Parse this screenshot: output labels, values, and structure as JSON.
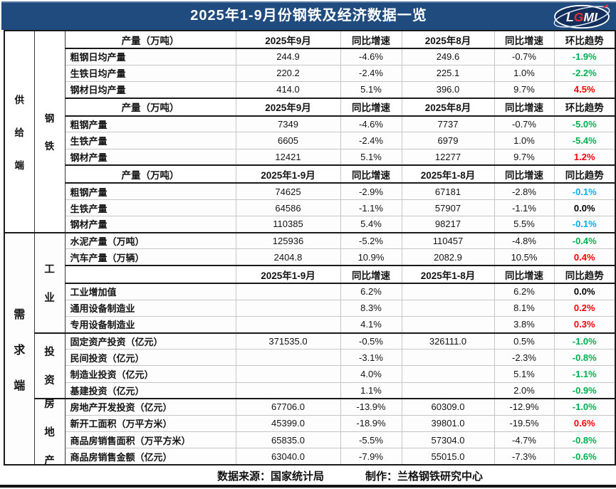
{
  "title": "2025年1-9月份钢铁及经济数据一览",
  "logo": {
    "l": "L",
    "g": "G",
    "mi": "MI"
  },
  "colors": {
    "titlebar": "#1F4B7E",
    "green": "#00B050",
    "red": "#FF0000",
    "blue": "#00B0F0",
    "black": "#000000"
  },
  "footer": {
    "source": "数据来源：国家统计局",
    "maker": "制作：兰格钢铁研究中心"
  },
  "table": {
    "rows": [
      {
        "type": "header",
        "side": {
          "text": "供给端",
          "span": 12
        },
        "category": {
          "text": "钢铁",
          "span": 12
        },
        "cells": [
          "产量（万吨）",
          "2025年9月",
          "同比增速",
          "2025年8月",
          "同比增速",
          "环比趋势"
        ]
      },
      {
        "type": "data",
        "cells": [
          "粗钢日均产量",
          "244.9",
          "-4.6%",
          "249.6",
          "-0.7%",
          "-1.9%"
        ],
        "trend_color": "green"
      },
      {
        "type": "data",
        "cells": [
          "生铁日均产量",
          "220.2",
          "-2.4%",
          "225.1",
          "1.0%",
          "-2.2%"
        ],
        "trend_color": "green"
      },
      {
        "type": "data",
        "cells": [
          "钢材日均产量",
          "414.0",
          "5.1%",
          "396.0",
          "9.7%",
          "4.5%"
        ],
        "trend_color": "red"
      },
      {
        "type": "header",
        "cells": [
          "产量（万吨）",
          "2025年9月",
          "同比增速",
          "2025年8月",
          "同比增速",
          "环比趋势"
        ]
      },
      {
        "type": "data",
        "cells": [
          "粗钢产量",
          "7349",
          "-4.6%",
          "7737",
          "-0.7%",
          "-5.0%"
        ],
        "trend_color": "green"
      },
      {
        "type": "data",
        "cells": [
          "生铁产量",
          "6605",
          "-2.4%",
          "6979",
          "1.0%",
          "-5.4%"
        ],
        "trend_color": "green"
      },
      {
        "type": "data",
        "cells": [
          "钢材产量",
          "12421",
          "5.1%",
          "12277",
          "9.7%",
          "1.2%"
        ],
        "trend_color": "red"
      },
      {
        "type": "header",
        "cells": [
          "产量（万吨）",
          "2025年1-9月",
          "同比增速",
          "2025年1-8月",
          "同比增速",
          "同比趋势"
        ]
      },
      {
        "type": "data",
        "cells": [
          "粗钢产量",
          "74625",
          "-2.9%",
          "67181",
          "-2.8%",
          "-0.1%"
        ],
        "trend_color": "blue"
      },
      {
        "type": "data",
        "cells": [
          "生铁产量",
          "64586",
          "-1.1%",
          "57907",
          "-1.1%",
          "0.0%"
        ],
        "trend_color": "black"
      },
      {
        "type": "data",
        "cells": [
          "钢材产量",
          "110385",
          "5.4%",
          "98217",
          "5.5%",
          "-0.1%"
        ],
        "trend_color": "blue"
      },
      {
        "type": "data",
        "sep": true,
        "side": {
          "text": "需求端",
          "span": 14
        },
        "category": {
          "text": "工业",
          "span": 6
        },
        "cells": [
          "水泥产量（万吨）",
          "125936",
          "-5.2%",
          "110457",
          "-4.8%",
          "-0.4%"
        ],
        "trend_color": "green"
      },
      {
        "type": "data",
        "cells": [
          "汽车产量（万辆）",
          "2404.8",
          "10.9%",
          "2082.9",
          "10.5%",
          "0.4%"
        ],
        "trend_color": "red"
      },
      {
        "type": "header",
        "cells": [
          "",
          "2025年1-9月",
          "同比增速",
          "2025年1-8月",
          "同比增速",
          "同比趋势"
        ]
      },
      {
        "type": "data",
        "cells": [
          "工业增加值",
          "",
          "6.2%",
          "",
          "6.2%",
          "0.0%"
        ],
        "trend_color": "black"
      },
      {
        "type": "data",
        "cells": [
          "通用设备制造业",
          "",
          "8.3%",
          "",
          "8.1%",
          "0.2%"
        ],
        "trend_color": "red"
      },
      {
        "type": "data",
        "cells": [
          "专用设备制造业",
          "",
          "4.1%",
          "",
          "3.8%",
          "0.3%"
        ],
        "trend_color": "red"
      },
      {
        "type": "data",
        "sep": true,
        "category": {
          "text": "投资",
          "span": 4
        },
        "cells": [
          "固定资产投资（亿元）",
          "371535.0",
          "-0.5%",
          "326111.0",
          "0.5%",
          "-1.0%"
        ],
        "trend_color": "green"
      },
      {
        "type": "data",
        "cells": [
          "民间投资（亿元）",
          "",
          "-3.1%",
          "",
          "-2.3%",
          "-0.8%"
        ],
        "trend_color": "green"
      },
      {
        "type": "data",
        "cells": [
          "制造业投资（亿元）",
          "",
          "4.0%",
          "",
          "5.1%",
          "-1.1%"
        ],
        "trend_color": "green"
      },
      {
        "type": "data",
        "cells": [
          "基建投资（亿元）",
          "",
          "1.1%",
          "",
          "2.0%",
          "-0.9%"
        ],
        "trend_color": "green"
      },
      {
        "type": "data",
        "sep": true,
        "category": {
          "text": "房地产",
          "span": 4
        },
        "cells": [
          "房地产开发投资（亿元）",
          "67706.0",
          "-13.9%",
          "60309.0",
          "-12.9%",
          "-1.0%"
        ],
        "trend_color": "green"
      },
      {
        "type": "data",
        "cells": [
          "新开工面积（万平方米）",
          "45399.0",
          "-18.9%",
          "39801.0",
          "-19.5%",
          "0.6%"
        ],
        "trend_color": "red"
      },
      {
        "type": "data",
        "cells": [
          "商品房销售面积（万平方米）",
          "65835.0",
          "-5.5%",
          "57304.0",
          "-4.7%",
          "-0.8%"
        ],
        "trend_color": "green"
      },
      {
        "type": "data",
        "cells": [
          "商品房销售金额（亿元）",
          "63040.0",
          "-7.9%",
          "55015.0",
          "-7.3%",
          "-0.6%"
        ],
        "trend_color": "green"
      }
    ]
  }
}
